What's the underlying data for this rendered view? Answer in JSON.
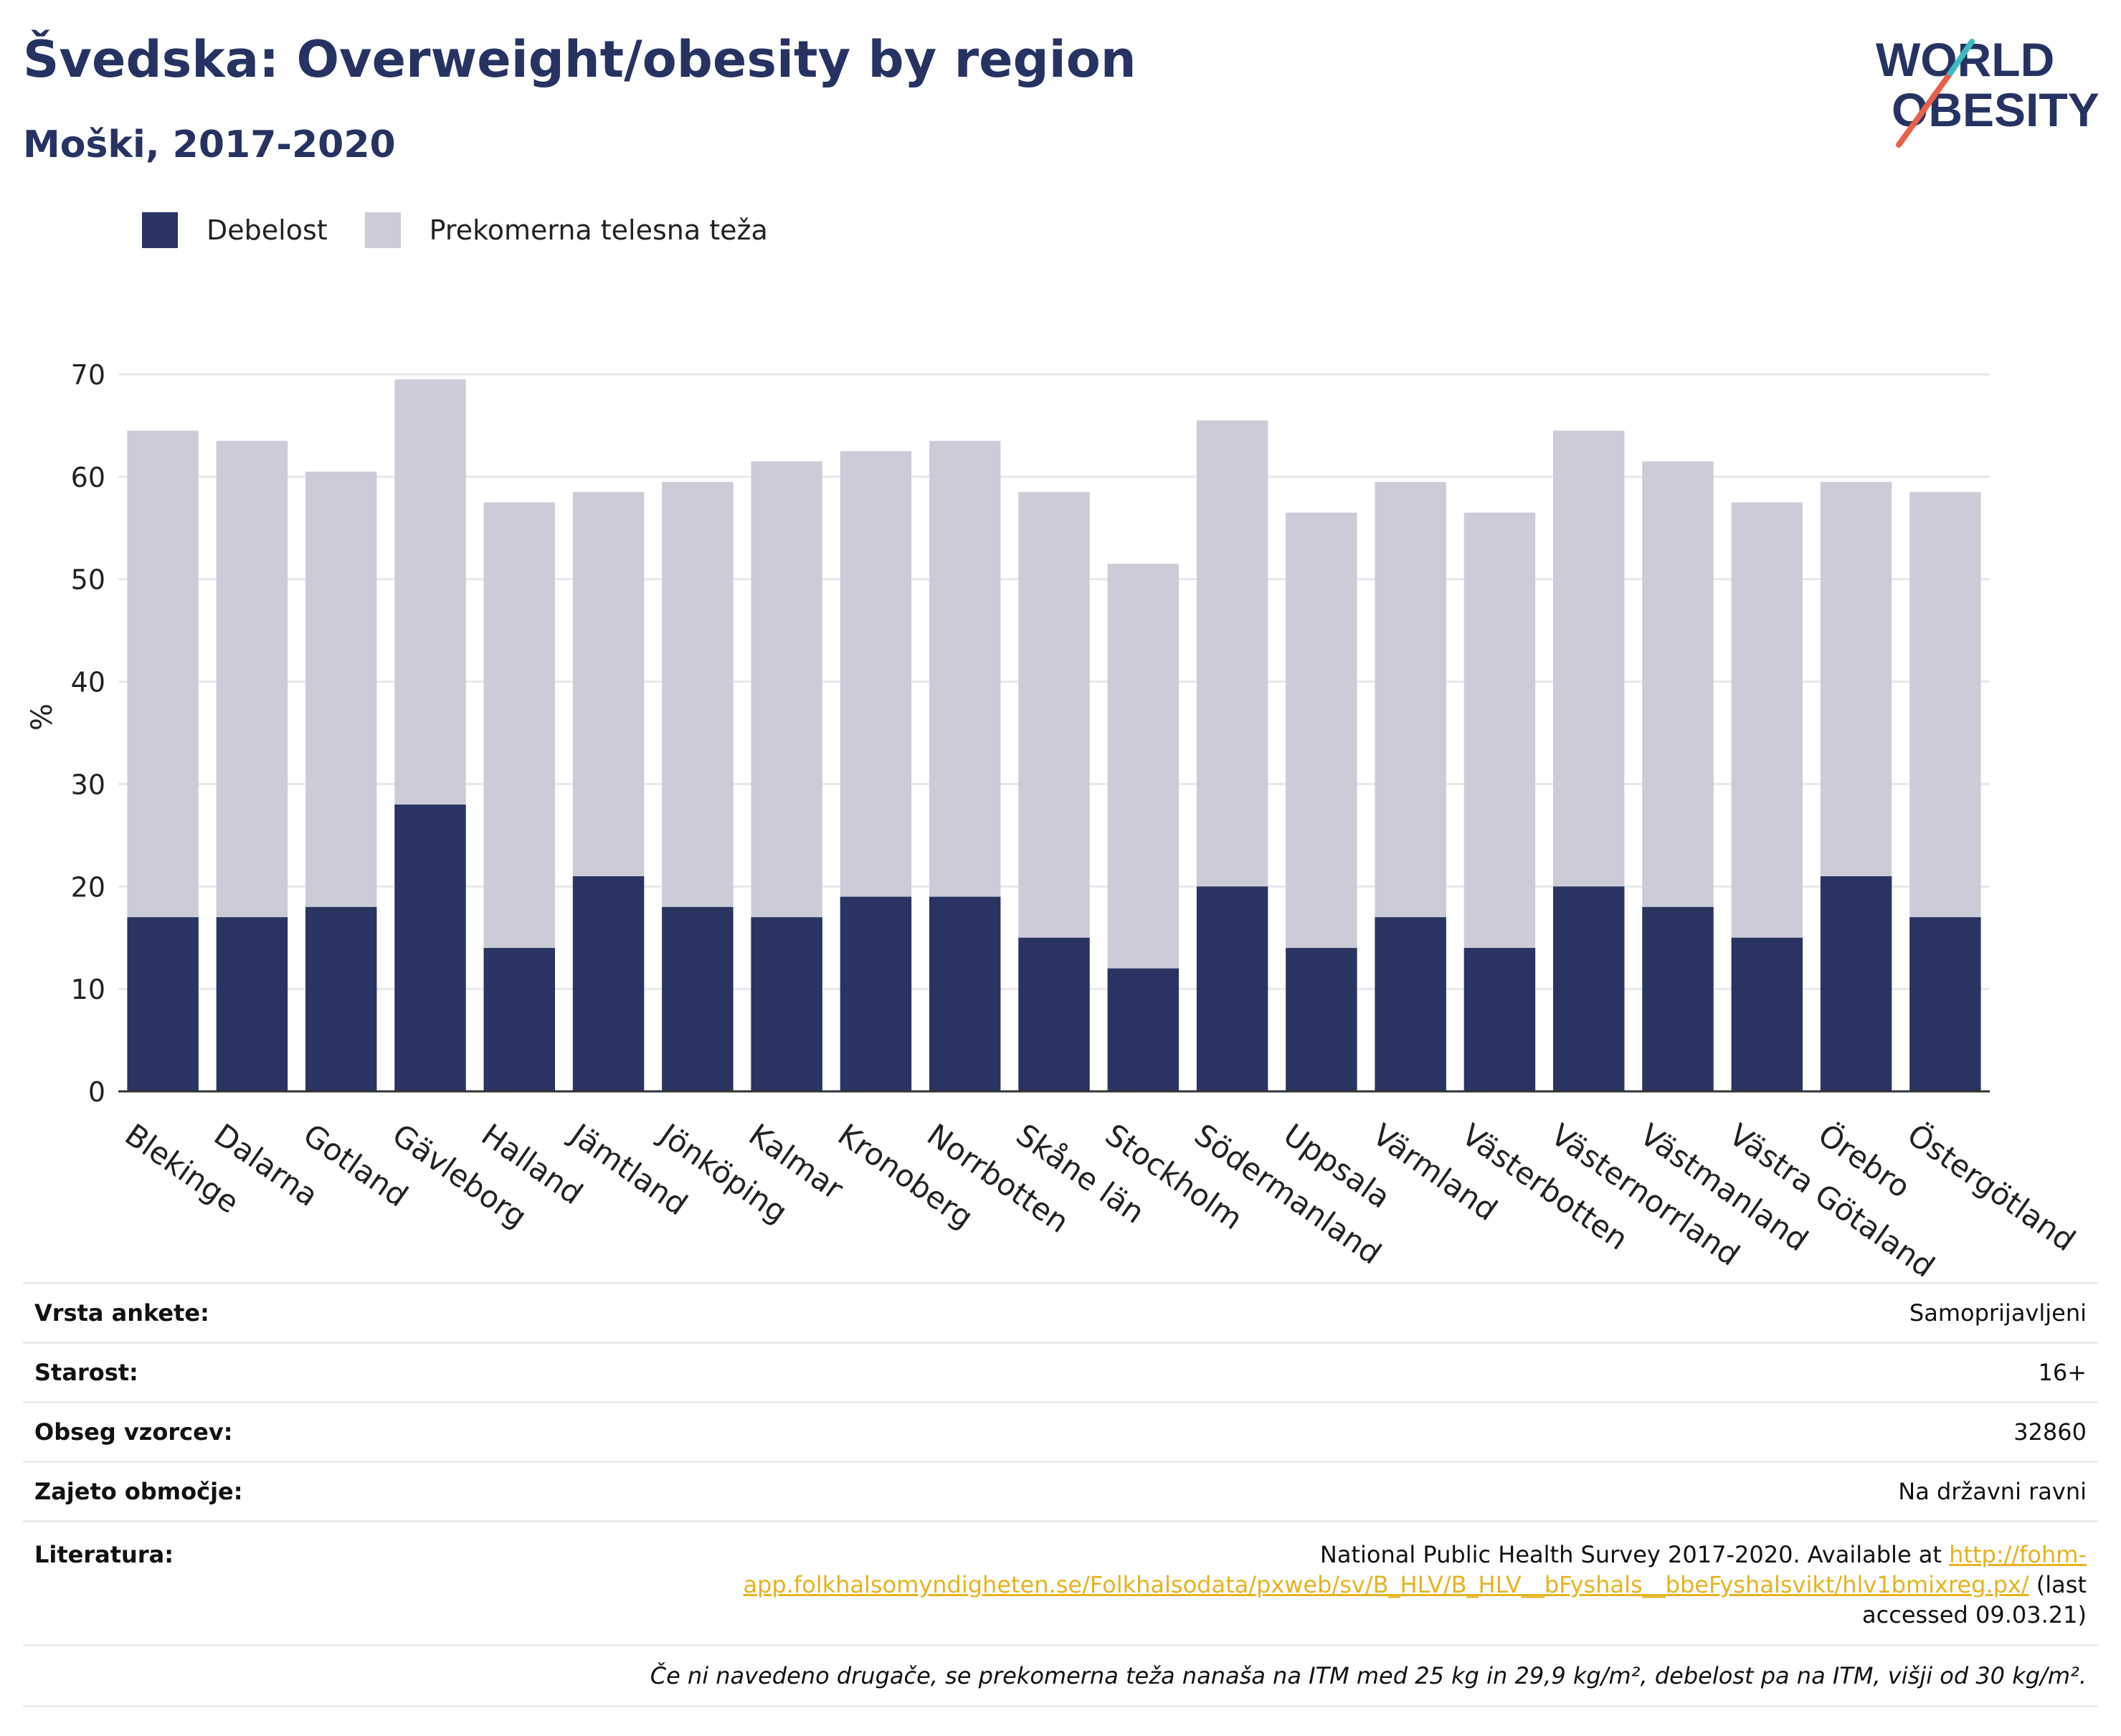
{
  "header": {
    "title": "Švedska: Overweight/obesity by region",
    "subtitle": "Moški, 2017-2020"
  },
  "logo": {
    "line1": "WORLD",
    "line2": "OBESITY"
  },
  "colors": {
    "obesity": "#293462",
    "overweight": "#ccccd8",
    "title": "#263362",
    "link": "#e6b320"
  },
  "chart_data": {
    "type": "bar",
    "stacked": false,
    "categories": [
      "Blekinge",
      "Dalarna",
      "Gotland",
      "Gävleborg",
      "Halland",
      "Jämtland",
      "Jönköping",
      "Kalmar",
      "Kronoberg",
      "Norrbotten",
      "Skåne län",
      "Stockholm",
      "Södermanland",
      "Uppsala",
      "Värmland",
      "Västerbotten",
      "Västernorrland",
      "Västmanland",
      "Västra Götaland",
      "Örebro",
      "Östergötland"
    ],
    "series": [
      {
        "name": "Debelost",
        "values": [
          17,
          17,
          18,
          28,
          14,
          21,
          18,
          17,
          19,
          19,
          15,
          12,
          20,
          14,
          17,
          14,
          20,
          18,
          15,
          21,
          17
        ]
      },
      {
        "name": "Prekomerna telesna teža",
        "values": [
          64.5,
          63.5,
          60.5,
          69.5,
          57.5,
          58.5,
          59.5,
          61.5,
          62.5,
          63.5,
          58.5,
          51.5,
          65.5,
          56.5,
          59.5,
          56.5,
          64.5,
          61.5,
          57.5,
          59.5,
          58.5
        ]
      }
    ],
    "ylabel": "%",
    "xlabel": "",
    "ylim": [
      0,
      70
    ],
    "yticks": [
      0,
      10,
      20,
      30,
      40,
      50,
      60,
      70
    ],
    "grid": true,
    "legend_position": "top-left"
  },
  "info": {
    "rows": [
      {
        "label": "Vrsta ankete:",
        "value": "Samoprijavljeni"
      },
      {
        "label": "Starost:",
        "value": "16+"
      },
      {
        "label": "Obseg vzorcev:",
        "value": "32860"
      },
      {
        "label": "Zajeto območje:",
        "value": "Na državni ravni"
      }
    ],
    "literature_label": "Literatura:",
    "literature_text": "National Public Health Survey 2017-2020. Available at",
    "literature_link": "http://fohm-app.folkhalsomyndigheten.se/Folkhalsodata/pxweb/sv/B_HLV/B_HLV__bFyshals__bbeFyshalsvikt/hlv1bmixreg.px/",
    "literature_suffix": "(last accessed 09.03.21)",
    "note": "Če ni navedeno drugače, se prekomerna teža nanaša na ITM med 25 kg in 29,9 kg/m², debelost pa na ITM, višji od 30 kg/m²."
  }
}
